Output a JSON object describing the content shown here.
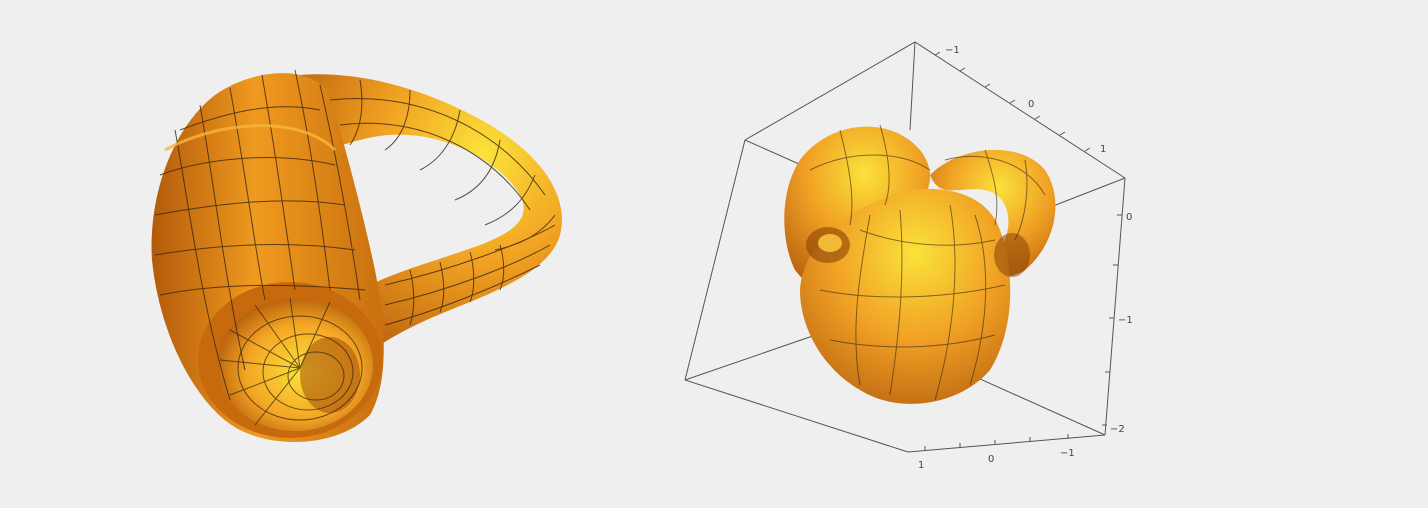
{
  "colors": {
    "background": "#efefef",
    "surface_dark": "#c2680f",
    "surface_mid": "#ef9a1f",
    "surface_light": "#fbe43a",
    "mesh": "#3a2410",
    "box": "#555555"
  },
  "left_figure": {
    "name": "tube-surface-with-mesh"
  },
  "right_figure": {
    "name": "knotted-tube-in-box",
    "axes": {
      "top": [
        "−1",
        "0",
        "1"
      ],
      "right": [
        "0",
        "−1",
        "−2"
      ],
      "bottom": [
        "1",
        "0",
        "−1"
      ]
    }
  }
}
